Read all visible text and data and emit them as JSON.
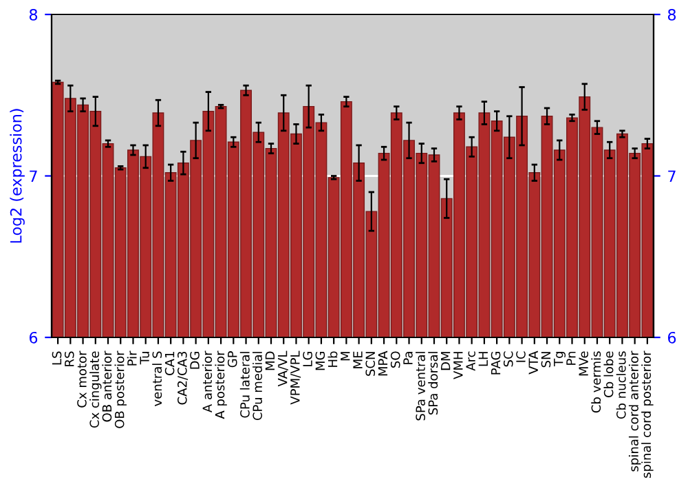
{
  "chart_data": {
    "type": "bar",
    "ylabel": "Log2 (expression)",
    "categories": [
      "LS",
      "RS",
      "Cx motor",
      "Cx cingulate",
      "OB anterior",
      "OB posterior",
      "Pir",
      "Tu",
      "ventral S",
      "CA1",
      "CA2/CA3",
      "DG",
      "A anterior",
      "A posterior",
      "GP",
      "CPu lateral",
      "CPu medial",
      "MD",
      "VA/VL",
      "VPM/VPL",
      "LG",
      "MG",
      "Hb",
      "M",
      "ME",
      "SCN",
      "MPA",
      "SO",
      "Pa",
      "SPa ventral",
      "SPa dorsal",
      "DM",
      "VMH",
      "Arc",
      "LH",
      "PAG",
      "SC",
      "IC",
      "VTA",
      "SN",
      "Tg",
      "Pn",
      "MVe",
      "Cb vermis",
      "Cb lobe",
      "Cb nucleus",
      "spinal cord anterior",
      "spinal cord posterior"
    ],
    "values": [
      7.58,
      7.48,
      7.44,
      7.4,
      7.2,
      7.05,
      7.16,
      7.12,
      7.39,
      7.02,
      7.08,
      7.22,
      7.4,
      7.43,
      7.21,
      7.53,
      7.27,
      7.17,
      7.39,
      7.26,
      7.43,
      7.33,
      6.99,
      7.46,
      7.08,
      6.78,
      7.14,
      7.39,
      7.22,
      7.14,
      7.13,
      6.86,
      7.39,
      7.18,
      7.39,
      7.34,
      7.24,
      7.37,
      7.02,
      7.37,
      7.16,
      7.36,
      7.49,
      7.3,
      7.16,
      7.26,
      7.14,
      7.2
    ],
    "errors": [
      0.01,
      0.08,
      0.04,
      0.09,
      0.02,
      0.01,
      0.03,
      0.07,
      0.08,
      0.05,
      0.07,
      0.11,
      0.12,
      0.01,
      0.03,
      0.03,
      0.06,
      0.03,
      0.11,
      0.06,
      0.13,
      0.05,
      0.01,
      0.03,
      0.11,
      0.12,
      0.04,
      0.04,
      0.11,
      0.06,
      0.04,
      0.12,
      0.04,
      0.06,
      0.07,
      0.06,
      0.13,
      0.18,
      0.05,
      0.05,
      0.06,
      0.02,
      0.08,
      0.04,
      0.05,
      0.02,
      0.03,
      0.03
    ],
    "color": "#b02a2a",
    "ylim": [
      6,
      8
    ],
    "yticks": [
      6,
      7,
      8
    ],
    "y2lim": [
      6,
      8
    ],
    "y2ticks": [
      6,
      7,
      8
    ],
    "grid": "y"
  }
}
